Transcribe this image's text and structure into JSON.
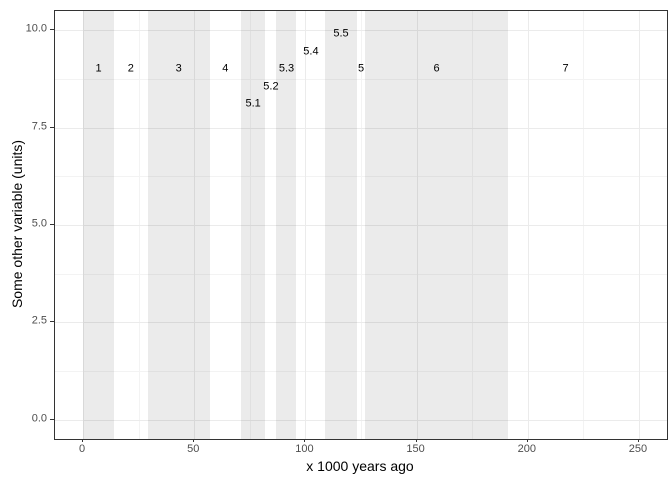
{
  "chart_data": {
    "type": "area",
    "subtype": "vertical shaded interval annotations (marine isotope stage style bands)",
    "title": "",
    "xlabel": "x 1000 years ago",
    "ylabel": "Some other variable (units)",
    "xlim": [
      -12.6,
      262.6
    ],
    "ylim": [
      -0.5,
      10.5
    ],
    "grid": true,
    "legend": "none",
    "x_ticks": [
      {
        "v": 0,
        "label": "0"
      },
      {
        "v": 50,
        "label": "50"
      },
      {
        "v": 100,
        "label": "100"
      },
      {
        "v": 150,
        "label": "150"
      },
      {
        "v": 200,
        "label": "200"
      },
      {
        "v": 250,
        "label": "250"
      }
    ],
    "y_ticks": [
      {
        "v": 0,
        "label": "0.0"
      },
      {
        "v": 2.5,
        "label": "2.5"
      },
      {
        "v": 5,
        "label": "5.0"
      },
      {
        "v": 7.5,
        "label": "7.5"
      },
      {
        "v": 10,
        "label": "10.0"
      }
    ],
    "x_minor_gridlines": [
      25,
      75,
      125,
      175,
      225
    ],
    "y_minor_gridlines": [
      1.25,
      3.75,
      6.25,
      8.75
    ],
    "bands": [
      {
        "stage": "1",
        "start": 0,
        "end": 14,
        "shaded": true
      },
      {
        "stage": "2",
        "start": 14,
        "end": 29,
        "shaded": false
      },
      {
        "stage": "3",
        "start": 29,
        "end": 57,
        "shaded": true
      },
      {
        "stage": "4",
        "start": 57,
        "end": 71,
        "shaded": false
      },
      {
        "stage": "5.1",
        "start": 71,
        "end": 82,
        "shaded": true
      },
      {
        "stage": "5.2",
        "start": 82,
        "end": 87,
        "shaded": false
      },
      {
        "stage": "5.3",
        "start": 87,
        "end": 96,
        "shaded": true
      },
      {
        "stage": "5.4",
        "start": 96,
        "end": 109,
        "shaded": false
      },
      {
        "stage": "5.5",
        "start": 109,
        "end": 123,
        "shaded": true
      },
      {
        "stage": "5",
        "start": 123,
        "end": 127,
        "shaded": false
      },
      {
        "stage": "6",
        "start": 127,
        "end": 191,
        "shaded": true
      },
      {
        "stage": "7",
        "start": 191,
        "end": 243,
        "shaded": false
      }
    ],
    "stage_labels": [
      {
        "text": "1",
        "x": 7,
        "y": 9.0
      },
      {
        "text": "2",
        "x": 21.5,
        "y": 9.0
      },
      {
        "text": "3",
        "x": 43,
        "y": 9.0
      },
      {
        "text": "4",
        "x": 64,
        "y": 9.0
      },
      {
        "text": "5.1",
        "x": 76.5,
        "y": 8.1
      },
      {
        "text": "5.2",
        "x": 84.5,
        "y": 8.55
      },
      {
        "text": "5.3",
        "x": 91.5,
        "y": 9.0
      },
      {
        "text": "5.4",
        "x": 102.5,
        "y": 9.45
      },
      {
        "text": "5.5",
        "x": 116,
        "y": 9.9
      },
      {
        "text": "5",
        "x": 125,
        "y": 9.0
      },
      {
        "text": "6",
        "x": 159,
        "y": 9.0
      },
      {
        "text": "7",
        "x": 217,
        "y": 9.0
      }
    ],
    "colors": {
      "background": "#ffffff",
      "panel_background": "#ffffff",
      "panel_border": "#333333",
      "grid_major": "#ebebeb",
      "grid_minor": "#f3f3f3",
      "band_fill": "rgba(0,0,0,0.08)",
      "tick_mark": "#333333",
      "tick_label": "#4d4d4d",
      "stage_label": "#000000",
      "axis_title": "#000000"
    }
  }
}
